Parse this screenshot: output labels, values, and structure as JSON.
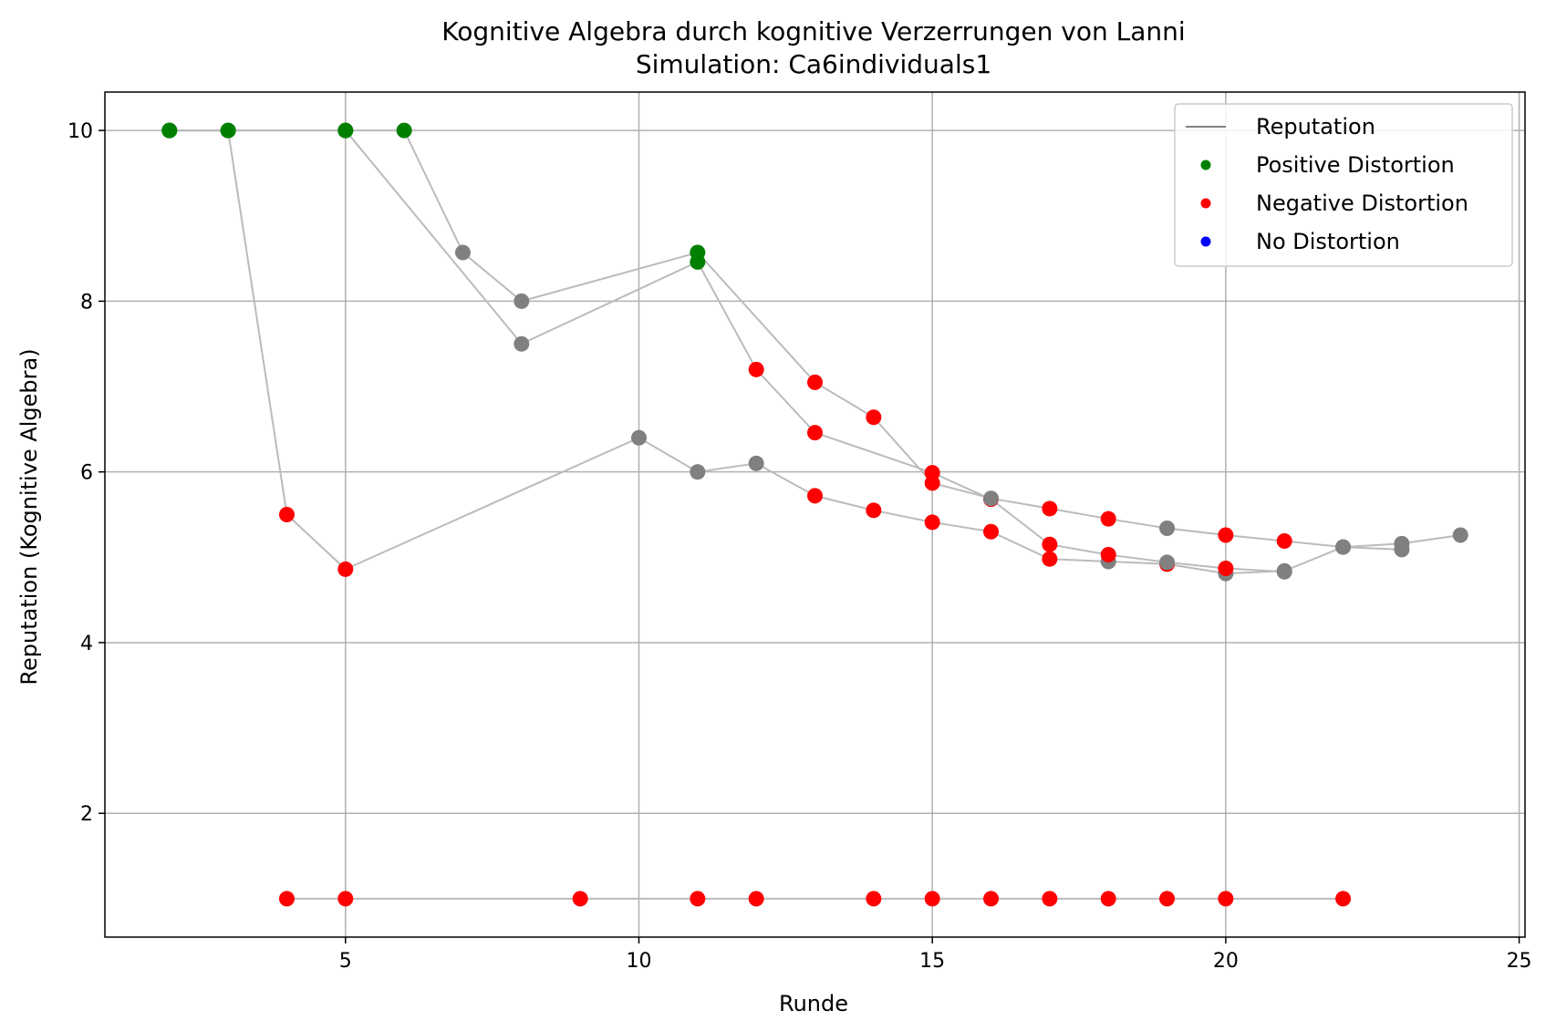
{
  "chart_data": {
    "type": "scatter",
    "title": "Kognitive Algebra durch kognitive Verzerrungen von Lanni",
    "subtitle": "Simulation: Ca6individuals1",
    "xlabel": "Runde",
    "ylabel": "Reputation (Kognitive Algebra)",
    "xlim": [
      0.9,
      25.1
    ],
    "ylim": [
      0.55,
      10.45
    ],
    "xticks": [
      5,
      10,
      15,
      20,
      25
    ],
    "yticks": [
      2,
      4,
      6,
      8,
      10
    ],
    "grid": true,
    "legend_position": "top-right",
    "colors": {
      "line": "#bbbbbb",
      "legend_line": "#808080",
      "positive": "#008000",
      "negative": "#ff0000",
      "none_dist": "#808080",
      "no_distortion_legend": "#0000ff"
    },
    "legend": [
      {
        "label": "Reputation",
        "kind": "line",
        "color": "#808080"
      },
      {
        "label": "Positive Distortion",
        "kind": "marker",
        "color": "#008000"
      },
      {
        "label": "Negative Distortion",
        "kind": "marker",
        "color": "#ff0000"
      },
      {
        "label": "No Distortion",
        "kind": "marker",
        "color": "#0000ff"
      }
    ],
    "series": [
      {
        "points": [
          {
            "x": 2,
            "y": 10,
            "d": "positive"
          },
          {
            "x": 3,
            "y": 10,
            "d": "positive"
          },
          {
            "x": 4,
            "y": 5.5,
            "d": "negative"
          },
          {
            "x": 5,
            "y": 4.86,
            "d": "negative"
          },
          {
            "x": 10,
            "y": 6.4,
            "d": "none"
          },
          {
            "x": 11,
            "y": 6.0,
            "d": "none"
          },
          {
            "x": 12,
            "y": 6.1,
            "d": "none"
          },
          {
            "x": 13,
            "y": 5.72,
            "d": "negative"
          },
          {
            "x": 14,
            "y": 5.55,
            "d": "negative"
          },
          {
            "x": 15,
            "y": 5.41,
            "d": "negative"
          },
          {
            "x": 16,
            "y": 5.3,
            "d": "negative"
          },
          {
            "x": 17,
            "y": 4.98,
            "d": "negative"
          },
          {
            "x": 18,
            "y": 4.95,
            "d": "none"
          },
          {
            "x": 19,
            "y": 4.92,
            "d": "negative"
          },
          {
            "x": 20,
            "y": 4.81,
            "d": "none"
          },
          {
            "x": 21,
            "y": 4.84,
            "d": "none"
          },
          {
            "x": 22,
            "y": 5.12,
            "d": "none"
          },
          {
            "x": 23,
            "y": 5.16,
            "d": "none"
          },
          {
            "x": 24,
            "y": 5.26,
            "d": "none"
          }
        ]
      },
      {
        "points": [
          {
            "x": 2,
            "y": 10,
            "d": "positive"
          },
          {
            "x": 3,
            "y": 10,
            "d": "positive"
          },
          {
            "x": 5,
            "y": 10,
            "d": "positive"
          },
          {
            "x": 8,
            "y": 7.5,
            "d": "none"
          },
          {
            "x": 11,
            "y": 8.46,
            "d": "positive"
          },
          {
            "x": 12,
            "y": 7.2,
            "d": "negative"
          },
          {
            "x": 13,
            "y": 6.46,
            "d": "negative"
          },
          {
            "x": 15,
            "y": 5.99,
            "d": "negative"
          },
          {
            "x": 16,
            "y": 5.68,
            "d": "negative"
          },
          {
            "x": 17,
            "y": 5.15,
            "d": "negative"
          },
          {
            "x": 18,
            "y": 5.03,
            "d": "negative"
          },
          {
            "x": 19,
            "y": 4.94,
            "d": "none"
          },
          {
            "x": 20,
            "y": 4.87,
            "d": "negative"
          },
          {
            "x": 21,
            "y": 4.83,
            "d": "none"
          }
        ]
      },
      {
        "points": [
          {
            "x": 2,
            "y": 10,
            "d": "positive"
          },
          {
            "x": 5,
            "y": 10,
            "d": "positive"
          },
          {
            "x": 6,
            "y": 10,
            "d": "positive"
          },
          {
            "x": 7,
            "y": 8.57,
            "d": "none"
          },
          {
            "x": 8,
            "y": 8.0,
            "d": "none"
          },
          {
            "x": 11,
            "y": 8.57,
            "d": "positive"
          },
          {
            "x": 13,
            "y": 7.05,
            "d": "negative"
          },
          {
            "x": 14,
            "y": 6.64,
            "d": "negative"
          },
          {
            "x": 15,
            "y": 5.87,
            "d": "negative"
          },
          {
            "x": 16,
            "y": 5.69,
            "d": "none"
          },
          {
            "x": 17,
            "y": 5.57,
            "d": "negative"
          },
          {
            "x": 18,
            "y": 5.45,
            "d": "negative"
          },
          {
            "x": 19,
            "y": 5.34,
            "d": "none"
          },
          {
            "x": 20,
            "y": 5.26,
            "d": "negative"
          },
          {
            "x": 21,
            "y": 5.19,
            "d": "negative"
          },
          {
            "x": 22,
            "y": 5.12,
            "d": "none"
          },
          {
            "x": 23,
            "y": 5.09,
            "d": "none"
          }
        ]
      },
      {
        "points": [
          {
            "x": 4,
            "y": 1,
            "d": "negative"
          },
          {
            "x": 5,
            "y": 1,
            "d": "negative"
          },
          {
            "x": 9,
            "y": 1,
            "d": "negative"
          },
          {
            "x": 11,
            "y": 1,
            "d": "negative"
          },
          {
            "x": 12,
            "y": 1,
            "d": "negative"
          },
          {
            "x": 14,
            "y": 1,
            "d": "negative"
          },
          {
            "x": 15,
            "y": 1,
            "d": "negative"
          },
          {
            "x": 16,
            "y": 1,
            "d": "negative"
          },
          {
            "x": 17,
            "y": 1,
            "d": "negative"
          },
          {
            "x": 18,
            "y": 1,
            "d": "negative"
          },
          {
            "x": 19,
            "y": 1,
            "d": "negative"
          },
          {
            "x": 20,
            "y": 1,
            "d": "negative"
          },
          {
            "x": 22,
            "y": 1,
            "d": "negative"
          }
        ]
      }
    ]
  }
}
